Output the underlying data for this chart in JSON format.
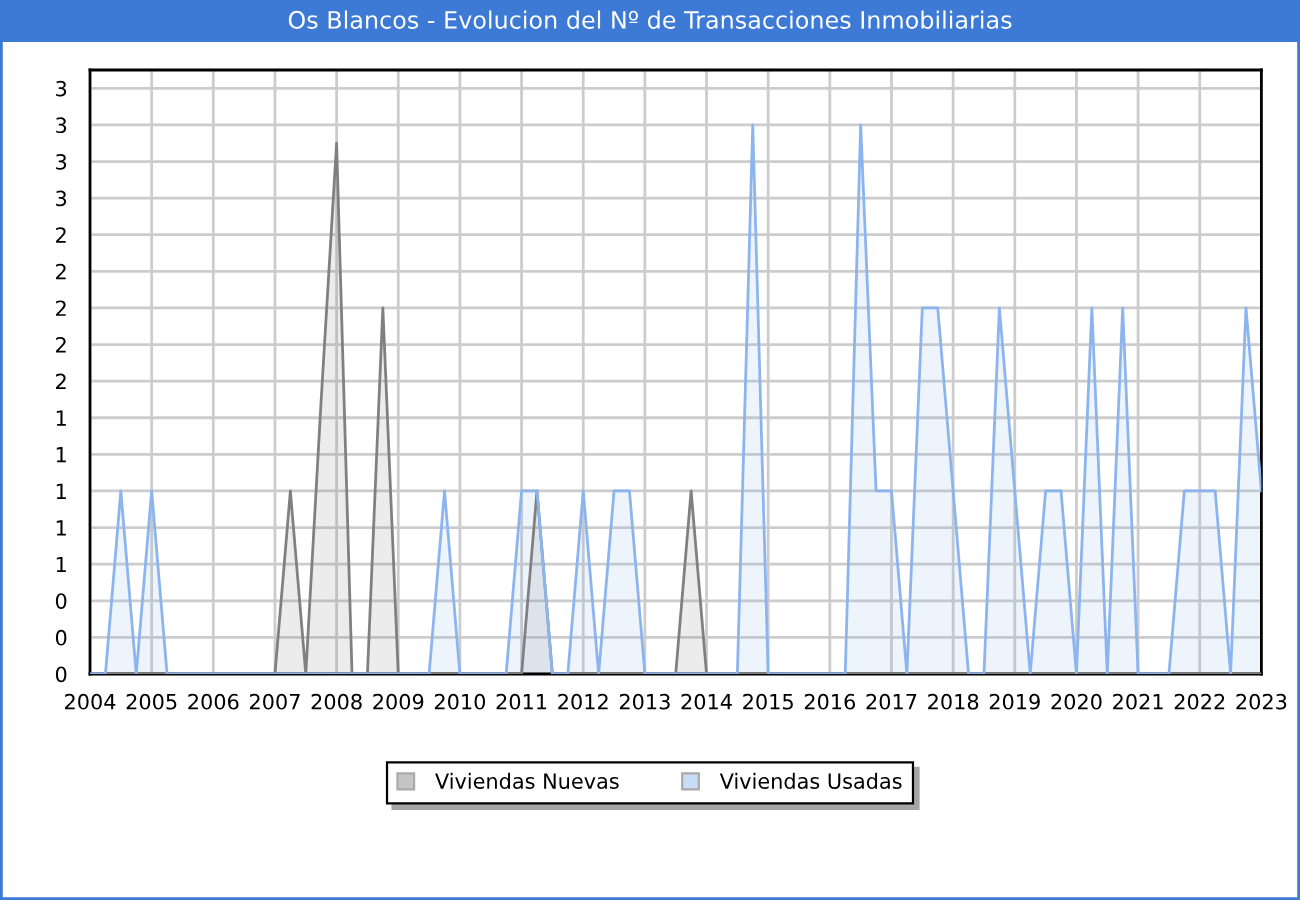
{
  "chart_data": {
    "type": "area",
    "title": "Os Blancos - Evolucion del Nº de Transacciones Inmobiliarias",
    "x": [
      2004,
      2004.25,
      2004.5,
      2004.75,
      2005,
      2005.25,
      2005.5,
      2005.75,
      2006,
      2006.25,
      2006.5,
      2006.75,
      2007,
      2007.25,
      2007.5,
      2007.75,
      2008,
      2008.25,
      2008.5,
      2008.75,
      2009,
      2009.25,
      2009.5,
      2009.75,
      2010,
      2010.25,
      2010.5,
      2010.75,
      2011,
      2011.25,
      2011.5,
      2011.75,
      2012,
      2012.25,
      2012.5,
      2012.75,
      2013,
      2013.25,
      2013.5,
      2013.75,
      2014,
      2014.25,
      2014.5,
      2014.75,
      2015,
      2015.25,
      2015.5,
      2015.75,
      2016,
      2016.25,
      2016.5,
      2016.75,
      2017,
      2017.25,
      2017.5,
      2017.75,
      2018,
      2018.25,
      2018.5,
      2018.75,
      2019,
      2019.25,
      2019.5,
      2019.75,
      2020,
      2020.25,
      2020.5,
      2020.75,
      2021,
      2021.25,
      2021.5,
      2021.75,
      2022,
      2022.25,
      2022.5,
      2022.75,
      2023
    ],
    "series": [
      {
        "name": "Viviendas Nuevas",
        "color": "#808080",
        "values": [
          0,
          0,
          0,
          0,
          0,
          0,
          0,
          0,
          0,
          0,
          0,
          0,
          0,
          1,
          0,
          1.5,
          2.9,
          0,
          0,
          2,
          0,
          0,
          0,
          0,
          0,
          0,
          0,
          0,
          0,
          1,
          0,
          0,
          0,
          0,
          0,
          0,
          0,
          0,
          0,
          1,
          0,
          0,
          0,
          0,
          0,
          0,
          0,
          0,
          0,
          0,
          0,
          0,
          0,
          0,
          0,
          0,
          0,
          0,
          0,
          0,
          0,
          0,
          0,
          0,
          0,
          0,
          0,
          0,
          0,
          0,
          0,
          0,
          0,
          0,
          0,
          0,
          0
        ]
      },
      {
        "name": "Viviendas Usadas",
        "color": "#8cb4ee",
        "values": [
          0,
          0,
          1,
          0,
          1,
          0,
          0,
          0,
          0,
          0,
          0,
          0,
          0,
          0,
          0,
          0,
          0,
          0,
          0,
          0,
          0,
          0,
          0,
          1,
          0,
          0,
          0,
          0,
          1,
          1,
          0,
          0,
          1,
          0,
          1,
          1,
          0,
          0,
          0,
          0,
          0,
          0,
          0,
          3,
          0,
          0,
          0,
          0,
          0,
          0,
          3,
          1,
          1,
          0,
          2,
          2,
          1,
          0,
          0,
          2,
          1,
          0,
          1,
          1,
          0,
          2,
          0,
          2,
          0,
          0,
          0,
          1,
          1,
          1,
          0,
          2,
          1
        ]
      }
    ],
    "xlim": [
      2004,
      2023
    ],
    "xticks": [
      2004,
      2005,
      2006,
      2007,
      2008,
      2009,
      2010,
      2011,
      2012,
      2013,
      2014,
      2015,
      2016,
      2017,
      2018,
      2019,
      2020,
      2021,
      2022,
      2023
    ],
    "ylim": [
      0,
      3.3
    ],
    "yticks": [
      0,
      {
        "value": 0.2,
        "label": "0"
      },
      {
        "value": 0.4,
        "label": "0"
      },
      {
        "value": 0.6,
        "label": "1"
      },
      {
        "value": 0.8,
        "label": "1"
      },
      1,
      {
        "value": 1.2,
        "label": "1"
      },
      {
        "value": 1.4,
        "label": "1"
      },
      {
        "value": 1.6,
        "label": "2"
      },
      {
        "value": 1.8,
        "label": "2"
      },
      2,
      {
        "value": 2.2,
        "label": "2"
      },
      {
        "value": 2.4,
        "label": "2"
      },
      {
        "value": 2.6,
        "label": "3"
      },
      {
        "value": 2.8,
        "label": "3"
      },
      3,
      {
        "value": 3.2,
        "label": "3"
      }
    ],
    "grid": true,
    "legend": "bottom"
  }
}
